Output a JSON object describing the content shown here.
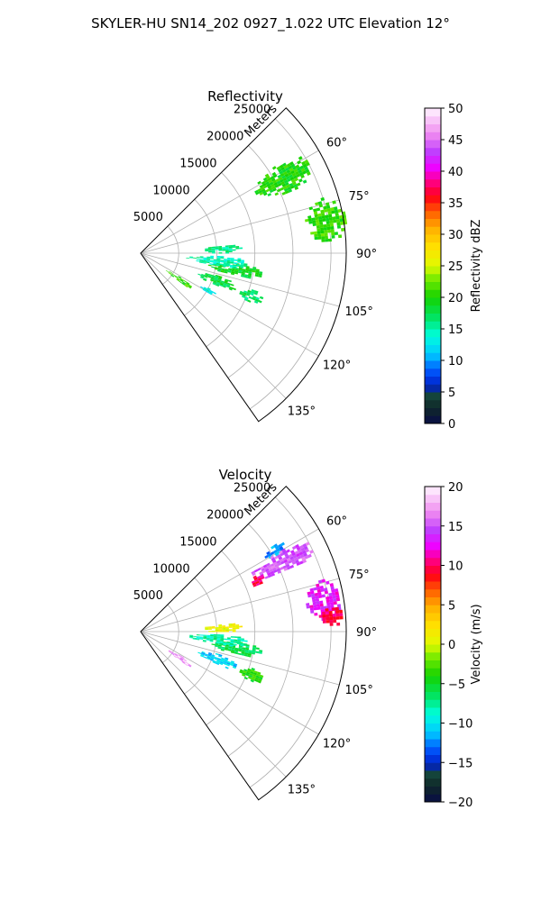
{
  "figure": {
    "suptitle": "SKYLER-HU  SN14_202  0927_1.022 UTC Elevation 12°"
  },
  "chart_data": [
    {
      "type": "heatmap",
      "projection": "polar-sector",
      "title": "Reflectivity",
      "range_label": "Meters",
      "range_max": 27000,
      "range_ticks": [
        5000,
        10000,
        15000,
        20000,
        25000
      ],
      "range_tick_labels": [
        "5000",
        "10000",
        "15000",
        "20000",
        "25000"
      ],
      "azimuth_range": [
        45,
        145
      ],
      "azimuth_ticks": [
        60,
        75,
        90,
        105,
        120,
        135
      ],
      "azimuth_tick_labels": [
        "60°",
        "75°",
        "90°",
        "105°",
        "120°",
        "135°"
      ],
      "grid": true,
      "colorbar": {
        "label": "Reflectivity dBZ",
        "vmin": 0,
        "vmax": 50,
        "ticks": [
          0,
          5,
          10,
          15,
          20,
          25,
          30,
          35,
          40,
          45,
          50
        ],
        "tick_labels": [
          "0",
          "5",
          "10",
          "15",
          "20",
          "25",
          "30",
          "35",
          "40",
          "45",
          "50"
        ],
        "placement": "right"
      },
      "echo_regions": [
        {
          "az": [
            57,
            67
          ],
          "range": [
            17000,
            25000
          ],
          "value": 20
        },
        {
          "az": [
            73,
            86
          ],
          "range": [
            22000,
            27000
          ],
          "value": 21
        },
        {
          "az": [
            84,
            90
          ],
          "range": [
            8000,
            13000
          ],
          "value": 16
        },
        {
          "az": [
            96,
            103
          ],
          "range": [
            9000,
            16000
          ],
          "value": 19
        },
        {
          "az": [
            92,
            99
          ],
          "range": [
            6000,
            14000
          ],
          "value": 15
        },
        {
          "az": [
            121,
            126
          ],
          "range": [
            4000,
            8000
          ],
          "value": 21
        },
        {
          "az": [
            106,
            113
          ],
          "range": [
            8000,
            13000
          ],
          "value": 18
        },
        {
          "az": [
            108,
            114
          ],
          "range": [
            14000,
            17000
          ],
          "value": 17
        },
        {
          "az": [
            117,
            120
          ],
          "range": [
            9000,
            11000
          ],
          "value": 14
        }
      ]
    },
    {
      "type": "heatmap",
      "projection": "polar-sector",
      "title": "Velocity",
      "range_label": "Meters",
      "range_max": 27000,
      "range_ticks": [
        5000,
        10000,
        15000,
        20000,
        25000
      ],
      "range_tick_labels": [
        "5000",
        "10000",
        "15000",
        "20000",
        "25000"
      ],
      "azimuth_range": [
        45,
        145
      ],
      "azimuth_ticks": [
        60,
        75,
        90,
        105,
        120,
        135
      ],
      "azimuth_tick_labels": [
        "60°",
        "75°",
        "90°",
        "105°",
        "120°",
        "135°"
      ],
      "grid": true,
      "colorbar": {
        "label": "Velocity (m/s)",
        "vmin": -20,
        "vmax": 20,
        "ticks": [
          -20,
          -15,
          -10,
          -5,
          0,
          5,
          10,
          15,
          20
        ],
        "tick_labels": [
          "−20",
          "−15",
          "−10",
          "−5",
          "0",
          "5",
          "10",
          "15",
          "20"
        ],
        "placement": "right"
      },
      "echo_regions": [
        {
          "az": [
            57,
            61
          ],
          "range": [
            19000,
            22000
          ],
          "value": -12
        },
        {
          "az": [
            60,
            67
          ],
          "range": [
            16000,
            25000
          ],
          "value": 15
        },
        {
          "az": [
            64,
            68
          ],
          "range": [
            15500,
            17500
          ],
          "value": 10
        },
        {
          "az": [
            74,
            86
          ],
          "range": [
            22000,
            26500
          ],
          "value": 13
        },
        {
          "az": [
            82,
            88
          ],
          "range": [
            23500,
            26500
          ],
          "value": 10
        },
        {
          "az": [
            84,
            90
          ],
          "range": [
            8000,
            13000
          ],
          "value": 1
        },
        {
          "az": [
            96,
            103
          ],
          "range": [
            9000,
            16000
          ],
          "value": -6
        },
        {
          "az": [
            92,
            99
          ],
          "range": [
            6000,
            14000
          ],
          "value": -8
        },
        {
          "az": [
            121,
            126
          ],
          "range": [
            4000,
            8000
          ],
          "value": 17
        },
        {
          "az": [
            106,
            113
          ],
          "range": [
            8000,
            13000
          ],
          "value": -11
        },
        {
          "az": [
            108,
            114
          ],
          "range": [
            14000,
            17000
          ],
          "value": -4
        }
      ]
    }
  ]
}
